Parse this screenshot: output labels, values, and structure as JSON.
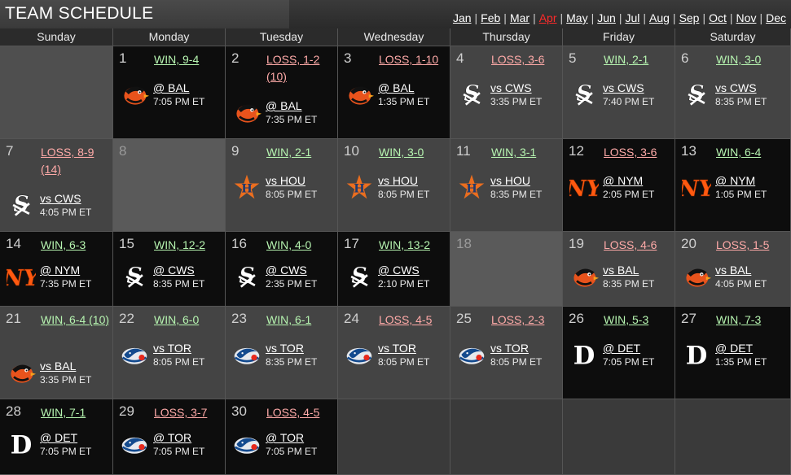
{
  "header": {
    "title": "TEAM SCHEDULE",
    "months": [
      "Jan",
      "Feb",
      "Mar",
      "Apr",
      "May",
      "Jun",
      "Jul",
      "Aug",
      "Sep",
      "Oct",
      "Nov",
      "Dec"
    ],
    "current_month": "Apr"
  },
  "weekdays": [
    "Sunday",
    "Monday",
    "Tuesday",
    "Wednesday",
    "Thursday",
    "Friday",
    "Saturday"
  ],
  "colors": {
    "win": "#b6f4b0",
    "loss": "#ffaaa8",
    "current_month": "#ff2a2a",
    "home_cell": "#444444",
    "away_cell": "#0d0d0d"
  },
  "weeks": [
    [
      {
        "type": "blank"
      },
      {
        "day": "1",
        "result": "WIN, 9-4",
        "outcome": "win",
        "matchup": "@ BAL",
        "time": "7:05 PM ET",
        "logo": "orioles-icon",
        "venue": "away"
      },
      {
        "day": "2",
        "result": "LOSS, 1-2 (10)",
        "outcome": "loss",
        "matchup": "@ BAL",
        "time": "7:35 PM ET",
        "logo": "orioles-icon",
        "venue": "away"
      },
      {
        "day": "3",
        "result": "LOSS, 1-10",
        "outcome": "loss",
        "matchup": "@ BAL",
        "time": "1:35 PM ET",
        "logo": "orioles-icon",
        "venue": "away"
      },
      {
        "day": "4",
        "result": "LOSS, 3-6",
        "outcome": "loss",
        "matchup": "vs CWS",
        "time": "3:35 PM ET",
        "logo": "white-sox-icon",
        "venue": "home"
      },
      {
        "day": "5",
        "result": "WIN, 2-1",
        "outcome": "win",
        "matchup": "vs CWS",
        "time": "7:40 PM ET",
        "logo": "white-sox-icon",
        "venue": "home"
      },
      {
        "day": "6",
        "result": "WIN, 3-0",
        "outcome": "win",
        "matchup": "vs CWS",
        "time": "8:35 PM ET",
        "logo": "white-sox-icon",
        "venue": "home"
      }
    ],
    [
      {
        "day": "7",
        "result": "LOSS, 8-9 (14)",
        "outcome": "loss",
        "matchup": "vs CWS",
        "time": "4:05 PM ET",
        "logo": "white-sox-icon",
        "venue": "home"
      },
      {
        "day": "8",
        "type": "off"
      },
      {
        "day": "9",
        "result": "WIN, 2-1",
        "outcome": "win",
        "matchup": "vs HOU",
        "time": "8:05 PM ET",
        "logo": "astros-icon",
        "venue": "home"
      },
      {
        "day": "10",
        "result": "WIN, 3-0",
        "outcome": "win",
        "matchup": "vs HOU",
        "time": "8:05 PM ET",
        "logo": "astros-icon",
        "venue": "home"
      },
      {
        "day": "11",
        "result": "WIN, 3-1",
        "outcome": "win",
        "matchup": "vs HOU",
        "time": "8:35 PM ET",
        "logo": "astros-icon",
        "venue": "home"
      },
      {
        "day": "12",
        "result": "LOSS, 3-6",
        "outcome": "loss",
        "matchup": "@ NYM",
        "time": "2:05 PM ET",
        "logo": "mets-icon",
        "venue": "away"
      },
      {
        "day": "13",
        "result": "WIN, 6-4",
        "outcome": "win",
        "matchup": "@ NYM",
        "time": "1:05 PM ET",
        "logo": "mets-icon",
        "venue": "away"
      }
    ],
    [
      {
        "day": "14",
        "result": "WIN, 6-3",
        "outcome": "win",
        "matchup": "@ NYM",
        "time": "7:35 PM ET",
        "logo": "mets-icon",
        "venue": "away"
      },
      {
        "day": "15",
        "result": "WIN, 12-2",
        "outcome": "win",
        "matchup": "@ CWS",
        "time": "8:35 PM ET",
        "logo": "white-sox-icon",
        "venue": "away"
      },
      {
        "day": "16",
        "result": "WIN, 4-0",
        "outcome": "win",
        "matchup": "@ CWS",
        "time": "2:35 PM ET",
        "logo": "white-sox-icon",
        "venue": "away"
      },
      {
        "day": "17",
        "result": "WIN, 13-2",
        "outcome": "win",
        "matchup": "@ CWS",
        "time": "2:10 PM ET",
        "logo": "white-sox-icon",
        "venue": "away"
      },
      {
        "day": "18",
        "type": "off"
      },
      {
        "day": "19",
        "result": "LOSS, 4-6",
        "outcome": "loss",
        "matchup": "vs BAL",
        "time": "8:35 PM ET",
        "logo": "orioles-icon",
        "venue": "home"
      },
      {
        "day": "20",
        "result": "LOSS, 1-5",
        "outcome": "loss",
        "matchup": "vs BAL",
        "time": "4:05 PM ET",
        "logo": "orioles-icon",
        "venue": "home"
      }
    ],
    [
      {
        "day": "21",
        "result": "WIN, 6-4 (10)",
        "outcome": "win",
        "matchup": "vs BAL",
        "time": "3:35 PM ET",
        "logo": "orioles-icon",
        "venue": "home"
      },
      {
        "day": "22",
        "result": "WIN, 6-0",
        "outcome": "win",
        "matchup": "vs TOR",
        "time": "8:05 PM ET",
        "logo": "blue-jays-icon",
        "venue": "home"
      },
      {
        "day": "23",
        "result": "WIN, 6-1",
        "outcome": "win",
        "matchup": "vs TOR",
        "time": "8:35 PM ET",
        "logo": "blue-jays-icon",
        "venue": "home"
      },
      {
        "day": "24",
        "result": "LOSS, 4-5",
        "outcome": "loss",
        "matchup": "vs TOR",
        "time": "8:05 PM ET",
        "logo": "blue-jays-icon",
        "venue": "home"
      },
      {
        "day": "25",
        "result": "LOSS, 2-3",
        "outcome": "loss",
        "matchup": "vs TOR",
        "time": "8:05 PM ET",
        "logo": "blue-jays-icon",
        "venue": "home"
      },
      {
        "day": "26",
        "result": "WIN, 5-3",
        "outcome": "win",
        "matchup": "@ DET",
        "time": "7:05 PM ET",
        "logo": "tigers-icon",
        "venue": "away"
      },
      {
        "day": "27",
        "result": "WIN, 7-3",
        "outcome": "win",
        "matchup": "@ DET",
        "time": "1:35 PM ET",
        "logo": "tigers-icon",
        "venue": "away"
      }
    ],
    [
      {
        "day": "28",
        "result": "WIN, 7-1",
        "outcome": "win",
        "matchup": "@ DET",
        "time": "7:05 PM ET",
        "logo": "tigers-icon",
        "venue": "away"
      },
      {
        "day": "29",
        "result": "LOSS, 3-7",
        "outcome": "loss",
        "matchup": "@ TOR",
        "time": "7:05 PM ET",
        "logo": "blue-jays-icon",
        "venue": "away"
      },
      {
        "day": "30",
        "result": "LOSS, 4-5",
        "outcome": "loss",
        "matchup": "@ TOR",
        "time": "7:05 PM ET",
        "logo": "blue-jays-icon",
        "venue": "away"
      },
      {
        "type": "blank"
      },
      {
        "type": "blank"
      },
      {
        "type": "blank"
      },
      {
        "type": "blank"
      }
    ]
  ]
}
